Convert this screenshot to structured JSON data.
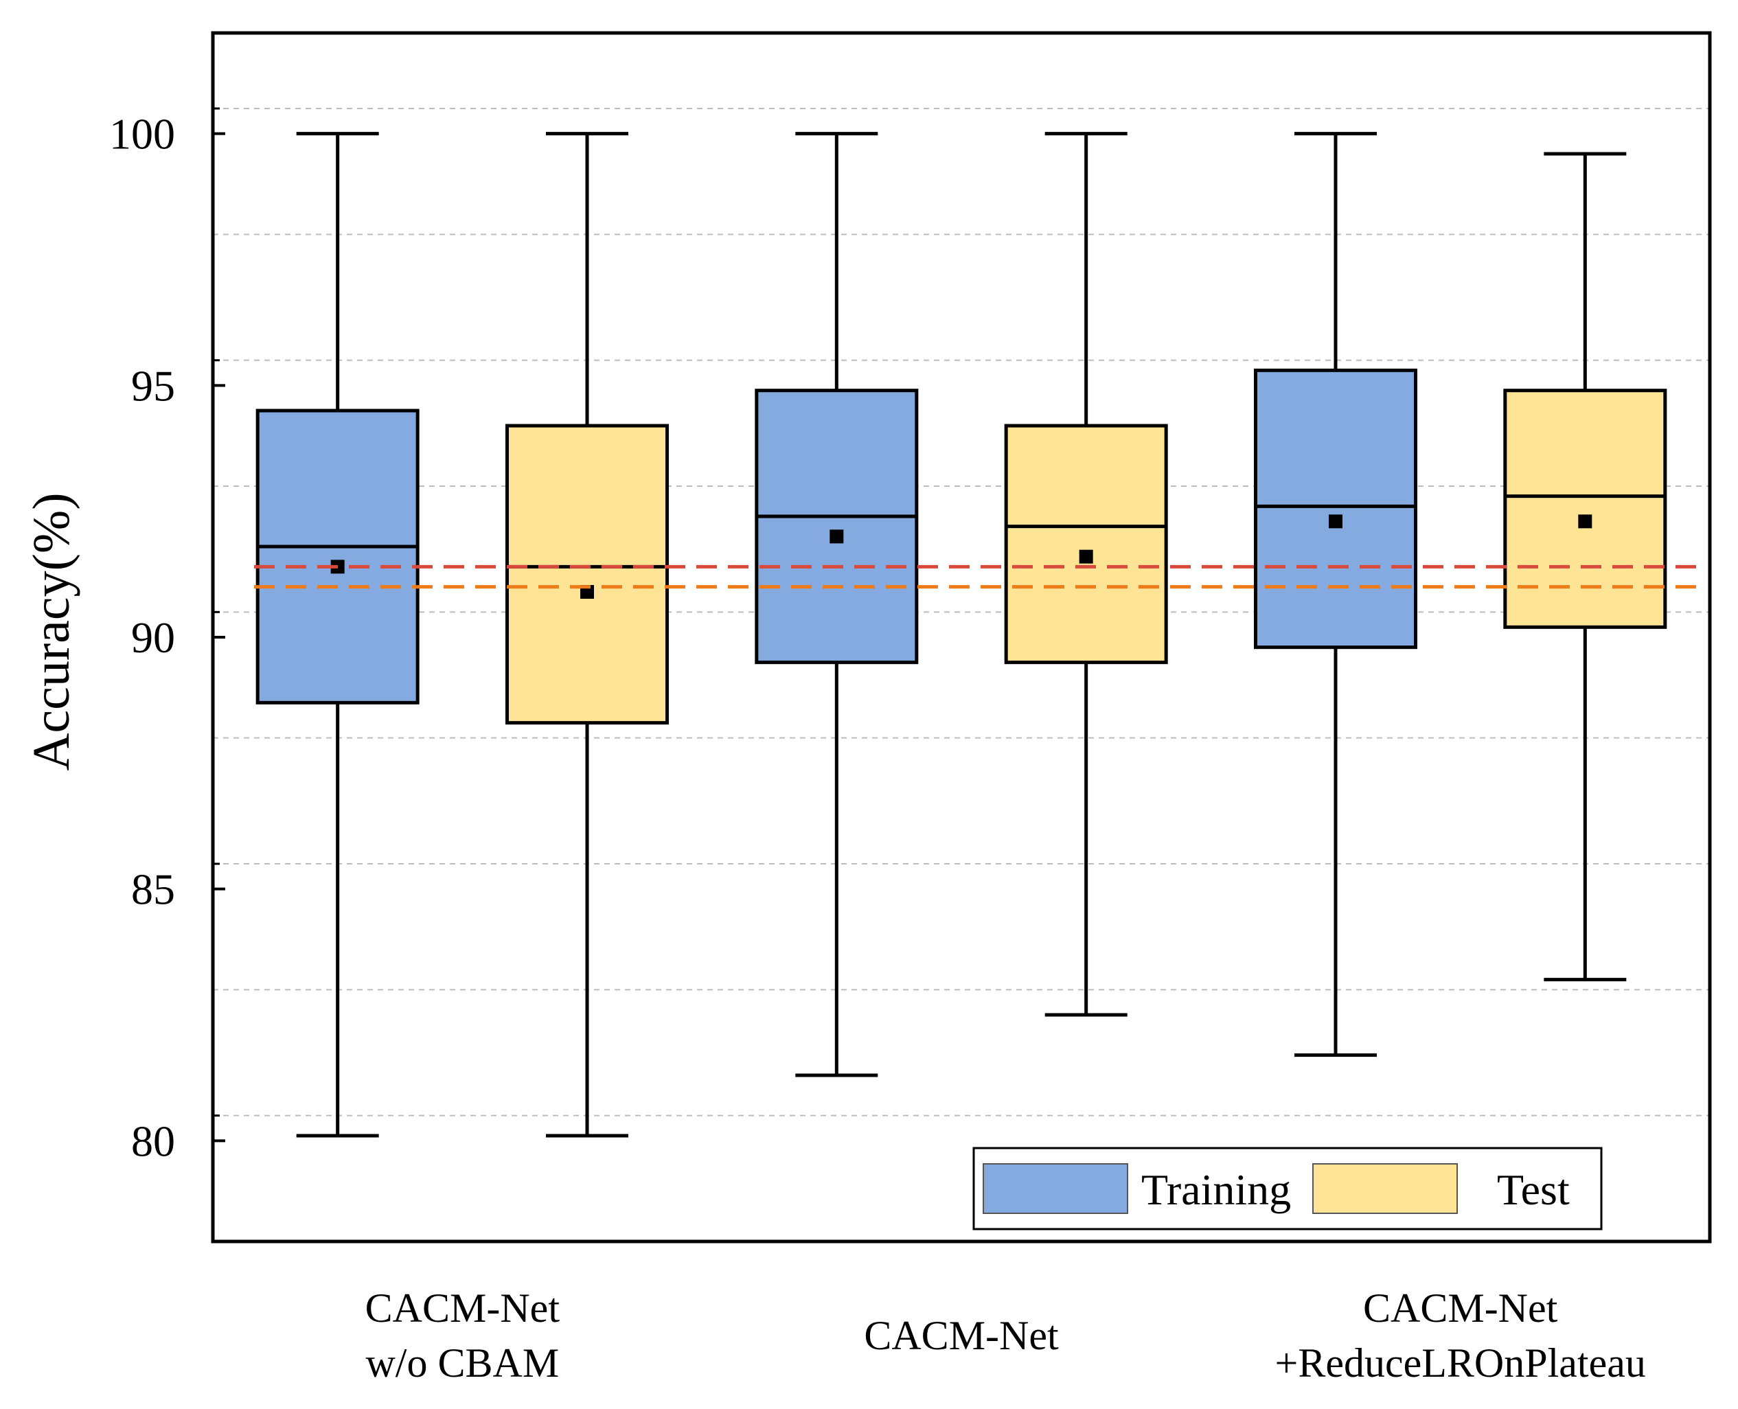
{
  "chart_data": {
    "type": "box",
    "ylabel": "Accuracy(%)",
    "xlabel": "",
    "ylim": [
      78,
      102
    ],
    "yticks": [
      80,
      85,
      90,
      95,
      100
    ],
    "grid": "horizontal dashed",
    "legend_position": "bottom-right",
    "groups": [
      {
        "label_lines": [
          "CACM-Net",
          "w/o CBAM"
        ]
      },
      {
        "label_lines": [
          "CACM-Net"
        ]
      },
      {
        "label_lines": [
          "CACM-Net",
          "+ReduceLROnPlateau"
        ]
      }
    ],
    "series": [
      {
        "name": "Training",
        "color": "#84aadf",
        "boxes": [
          {
            "min": 80.1,
            "q1": 88.7,
            "median": 91.8,
            "q3": 94.5,
            "max": 100.0,
            "mean": 91.4
          },
          {
            "min": 81.3,
            "q1": 89.5,
            "median": 92.4,
            "q3": 94.9,
            "max": 100.0,
            "mean": 92.0
          },
          {
            "min": 81.7,
            "q1": 89.8,
            "median": 92.6,
            "q3": 95.3,
            "max": 100.0,
            "mean": 92.3
          }
        ]
      },
      {
        "name": "Test",
        "color": "#ffe495",
        "boxes": [
          {
            "min": 80.1,
            "q1": 88.3,
            "median": 91.4,
            "q3": 94.2,
            "max": 100.0,
            "mean": 90.9
          },
          {
            "min": 82.5,
            "q1": 89.5,
            "median": 92.2,
            "q3": 94.2,
            "max": 100.0,
            "mean": 91.6
          },
          {
            "min": 83.2,
            "q1": 90.2,
            "median": 92.8,
            "q3": 94.9,
            "max": 99.6,
            "mean": 92.3
          }
        ]
      }
    ],
    "reference_lines": [
      {
        "y": 91.4,
        "color": "#d94a3d",
        "style": "dashed"
      },
      {
        "y": 91.0,
        "color": "#ee7a18",
        "style": "dashed"
      }
    ]
  }
}
